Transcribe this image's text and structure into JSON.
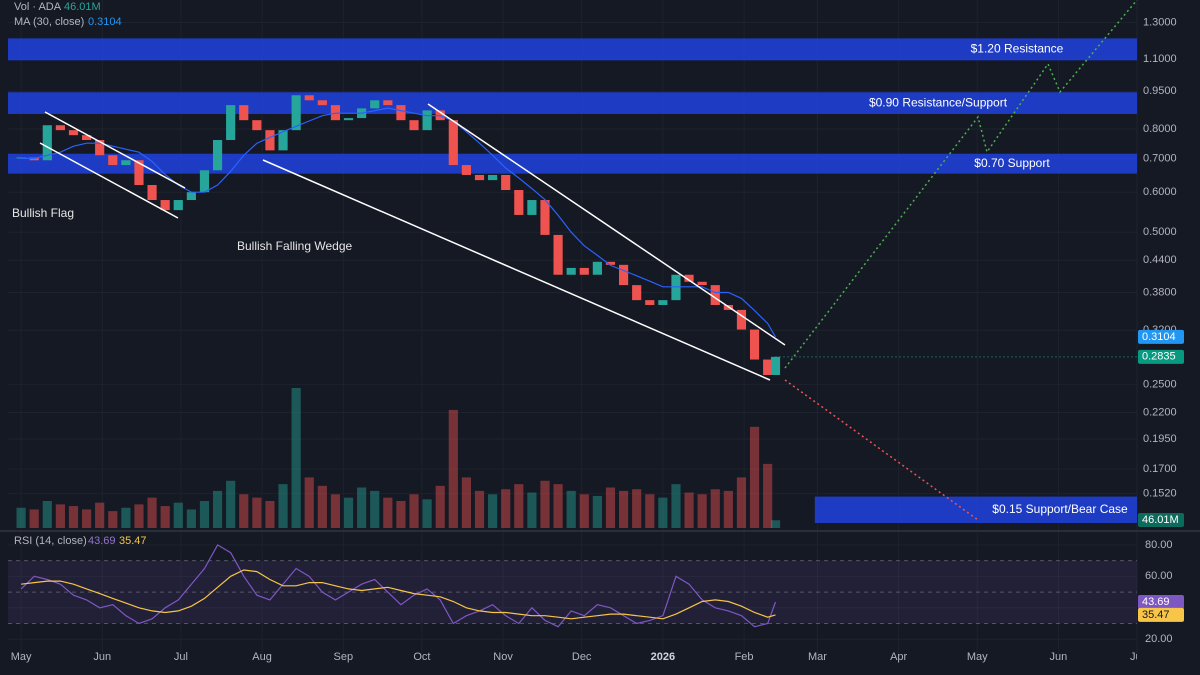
{
  "chart_data": {
    "type": "candlestick",
    "log_scale": true,
    "grid": true,
    "up_color": "#26a69a",
    "down_color": "#ef5350",
    "ma_color": "#2962ff",
    "rsi_color": "#7e57c2",
    "rsi_ma_color": "#f7c548",
    "volume_legend": "Vol · ADA",
    "volume_last": {
      "value": 46.01,
      "label": "46.01M"
    },
    "ma_legend": "MA (30, close)",
    "ma_last": 0.3104,
    "close_last": 0.2835,
    "rsi_legend": "RSI (14, close)",
    "rsi_last": 43.69,
    "rsi_ma_last": 35.47,
    "annotations": [
      "Bullish Flag",
      "Bullish Falling Wedge"
    ],
    "zones": [
      {
        "label": "$1.20 Resistance",
        "range": [
          1.094,
          1.209
        ]
      },
      {
        "label": "$0.90 Resistance/Support",
        "range": [
          0.857,
          0.946
        ]
      },
      {
        "label": "$0.70 Support",
        "range": [
          0.653,
          0.715
        ]
      },
      {
        "label": "$0.15 Support/Bear Case",
        "range": [
          0.133,
          0.15
        ],
        "x_start": 303
      }
    ],
    "xlim": [
      -5,
      426
    ],
    "xticks": [
      {
        "value": 0,
        "label": "May"
      },
      {
        "value": 31,
        "label": "Jun"
      },
      {
        "value": 61,
        "label": "Jul"
      },
      {
        "value": 92,
        "label": "Aug"
      },
      {
        "value": 123,
        "label": "Sep"
      },
      {
        "value": 153,
        "label": "Oct"
      },
      {
        "value": 184,
        "label": "Nov"
      },
      {
        "value": 214,
        "label": "Dec"
      },
      {
        "value": 245,
        "label": "2026"
      },
      {
        "value": 276,
        "label": "Feb"
      },
      {
        "value": 304,
        "label": "Mar"
      },
      {
        "value": 335,
        "label": "Apr"
      },
      {
        "value": 365,
        "label": "May"
      },
      {
        "value": 396,
        "label": "Jun"
      },
      {
        "value": 426,
        "label": "Jul"
      }
    ],
    "ylim": [
      0.13,
      1.44
    ],
    "yticks": [
      {
        "value": 1.3,
        "label": "1.3000"
      },
      {
        "value": 1.1,
        "label": "1.1000"
      },
      {
        "value": 0.95,
        "label": "0.9500"
      },
      {
        "value": 0.8,
        "label": "0.8000"
      },
      {
        "value": 0.7,
        "label": "0.7000"
      },
      {
        "value": 0.6,
        "label": "0.6000"
      },
      {
        "value": 0.5,
        "label": "0.5000"
      },
      {
        "value": 0.44,
        "label": "0.4400"
      },
      {
        "value": 0.38,
        "label": "0.3800"
      },
      {
        "value": 0.32,
        "label": "0.3200"
      },
      {
        "value": 0.25,
        "label": "0.2500"
      },
      {
        "value": 0.22,
        "label": "0.2200"
      },
      {
        "value": 0.195,
        "label": "0.1950"
      },
      {
        "value": 0.17,
        "label": "0.1700"
      },
      {
        "value": 0.152,
        "label": "0.1520"
      }
    ],
    "rsi_ylim": [
      10,
      85
    ],
    "rsi_yticks": [
      {
        "value": 80,
        "label": "80.00"
      },
      {
        "value": 60,
        "label": "60.00"
      },
      {
        "value": 40,
        "label": "40.00"
      },
      {
        "value": 20,
        "label": "20.00"
      }
    ],
    "rsi_levels": [
      30,
      50,
      70
    ],
    "x": [
      0,
      5,
      10,
      15,
      20,
      25,
      30,
      35,
      40,
      45,
      50,
      55,
      60,
      65,
      70,
      75,
      80,
      85,
      90,
      95,
      100,
      105,
      110,
      115,
      120,
      125,
      130,
      135,
      140,
      145,
      150,
      155,
      160,
      165,
      170,
      175,
      180,
      185,
      190,
      195,
      200,
      205,
      210,
      215,
      220,
      225,
      230,
      235,
      240,
      245,
      250,
      255,
      260,
      265,
      270,
      275,
      280,
      285,
      288
    ],
    "close": [
      0.703,
      0.694,
      0.814,
      0.796,
      0.778,
      0.761,
      0.71,
      0.679,
      0.694,
      0.62,
      0.579,
      0.553,
      0.579,
      0.6,
      0.663,
      0.761,
      0.892,
      0.833,
      0.796,
      0.726,
      0.796,
      0.933,
      0.912,
      0.892,
      0.833,
      0.841,
      0.879,
      0.912,
      0.892,
      0.833,
      0.796,
      0.871,
      0.833,
      0.679,
      0.649,
      0.634,
      0.649,
      0.606,
      0.541,
      0.579,
      0.494,
      0.412,
      0.425,
      0.412,
      0.437,
      0.431,
      0.393,
      0.367,
      0.359,
      0.367,
      0.412,
      0.399,
      0.393,
      0.359,
      0.351,
      0.321,
      0.28,
      0.261,
      0.2835
    ],
    "ma": [
      0.7,
      0.7,
      0.71,
      0.72,
      0.74,
      0.75,
      0.75,
      0.74,
      0.73,
      0.72,
      0.69,
      0.65,
      0.62,
      0.6,
      0.6,
      0.62,
      0.66,
      0.71,
      0.75,
      0.77,
      0.79,
      0.81,
      0.83,
      0.85,
      0.86,
      0.86,
      0.86,
      0.87,
      0.88,
      0.87,
      0.86,
      0.85,
      0.85,
      0.83,
      0.79,
      0.75,
      0.71,
      0.67,
      0.64,
      0.61,
      0.58,
      0.54,
      0.5,
      0.47,
      0.45,
      0.43,
      0.42,
      0.41,
      0.4,
      0.39,
      0.39,
      0.39,
      0.39,
      0.38,
      0.38,
      0.37,
      0.35,
      0.33,
      0.3104
    ],
    "volume": [
      120,
      110,
      160,
      140,
      130,
      110,
      150,
      100,
      120,
      140,
      180,
      130,
      150,
      110,
      160,
      220,
      280,
      200,
      180,
      160,
      260,
      830,
      300,
      250,
      200,
      180,
      240,
      220,
      180,
      160,
      200,
      170,
      250,
      700,
      300,
      220,
      200,
      230,
      260,
      210,
      280,
      260,
      220,
      200,
      190,
      240,
      220,
      230,
      200,
      180,
      260,
      210,
      200,
      230,
      220,
      300,
      600,
      380,
      46.01
    ],
    "rsi": [
      52,
      60,
      58,
      55,
      48,
      45,
      40,
      42,
      35,
      30,
      33,
      40,
      45,
      55,
      65,
      80,
      75,
      60,
      48,
      45,
      55,
      65,
      60,
      50,
      45,
      50,
      55,
      58,
      50,
      42,
      48,
      52,
      45,
      30,
      35,
      38,
      42,
      35,
      30,
      40,
      32,
      28,
      38,
      35,
      42,
      40,
      35,
      30,
      32,
      35,
      60,
      55,
      45,
      40,
      38,
      35,
      28,
      30,
      43.69
    ],
    "rsi_ma": [
      55,
      56,
      57,
      57,
      55,
      52,
      49,
      46,
      43,
      40,
      38,
      37,
      38,
      41,
      46,
      53,
      60,
      64,
      63,
      58,
      54,
      54,
      56,
      56,
      54,
      52,
      51,
      52,
      53,
      51,
      49,
      48,
      47,
      44,
      40,
      38,
      37,
      37,
      36,
      35,
      35,
      34,
      33,
      34,
      35,
      36,
      36,
      35,
      34,
      33,
      36,
      40,
      44,
      45,
      44,
      41,
      37,
      34,
      35.47
    ]
  }
}
